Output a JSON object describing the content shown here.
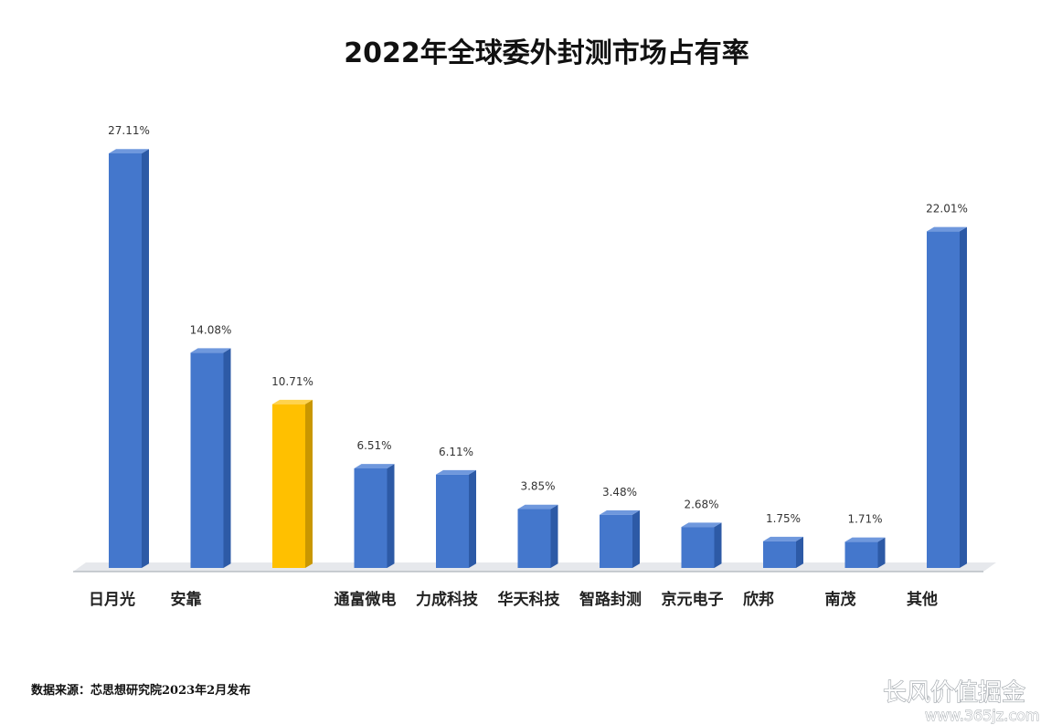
{
  "chart_data": {
    "type": "bar",
    "title": "2022年全球委外封测市场占有率",
    "categories": [
      "日月光",
      "安靠",
      "",
      "通富微电",
      "力成科技",
      "华天科技",
      "智路封测",
      "京元电子",
      "欣邦",
      "南茂",
      "其他"
    ],
    "values": [
      27.11,
      14.08,
      10.71,
      6.51,
      6.11,
      3.85,
      3.48,
      2.68,
      1.75,
      1.71,
      22.01
    ],
    "value_labels": [
      "27.11%",
      "14.08%",
      "10.71%",
      "6.51%",
      "6.11%",
      "3.85%",
      "3.48%",
      "2.68%",
      "1.75%",
      "1.71%",
      "22.01%"
    ],
    "highlight_index": 2,
    "xlabel": "",
    "ylabel": "",
    "ylim": [
      0,
      28
    ],
    "grid": false,
    "legend": "none",
    "colors": {
      "bar": "#4477cc",
      "bar_side": "#2d5aa6",
      "bar_top": "#6f98dd",
      "highlight": "#ffc000",
      "highlight_side": "#c99700",
      "highlight_top": "#ffd34d"
    }
  },
  "source_note": "数据来源：芯思想研究院2023年2月发布",
  "watermark": {
    "text": "长风价值掘金",
    "url": "www.365jz.com"
  }
}
